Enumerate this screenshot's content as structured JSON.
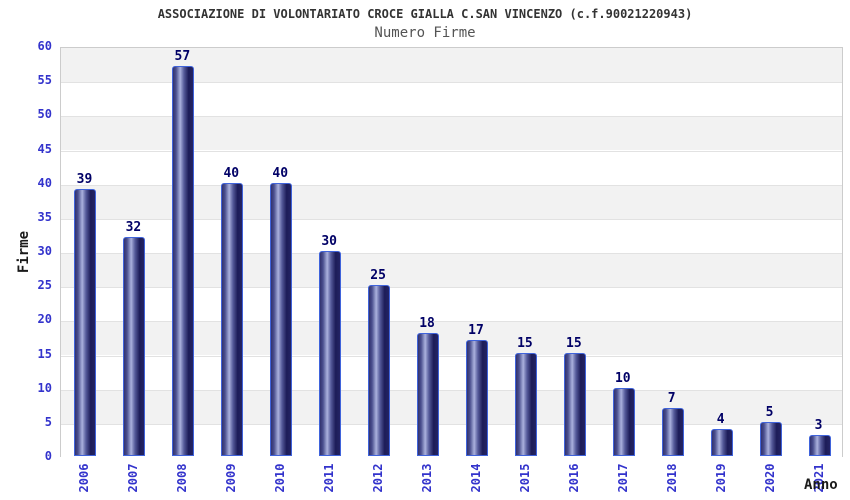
{
  "chart_data": {
    "type": "bar",
    "title": "ASSOCIAZIONE DI VOLONTARIATO CROCE GIALLA C.SAN VINCENZO (c.f.90021220943)",
    "subtitle": "Numero Firme",
    "categories": [
      "2006",
      "2007",
      "2008",
      "2009",
      "2010",
      "2011",
      "2012",
      "2013",
      "2014",
      "2015",
      "2016",
      "2017",
      "2018",
      "2019",
      "2020",
      "2021"
    ],
    "values": [
      39,
      32,
      57,
      40,
      40,
      30,
      25,
      18,
      17,
      15,
      15,
      10,
      7,
      4,
      5,
      3
    ],
    "xlabel": "Anno",
    "ylabel": "Firme",
    "ylim": [
      0,
      60
    ],
    "ytick_step": 5,
    "yticks": [
      0,
      5,
      10,
      15,
      20,
      25,
      30,
      35,
      40,
      45,
      50,
      55,
      60
    ],
    "value_labels_shown": true,
    "legend": "none",
    "grid": "horizontal-bands-every-5-units-alternating-shading",
    "colors": {
      "bar_fill_dark": "#26266a",
      "bar_fill_light": "#aab1dd",
      "bar_border": "#3f63db",
      "axis_tick_label": "#3333cc",
      "value_label": "#000066",
      "band_shaded": "#f2f2f2",
      "band_plain": "#ffffff",
      "plot_border": "#cccccc",
      "title": "#333333",
      "subtitle": "#545454",
      "axis_title": "#1a1a1a"
    }
  }
}
